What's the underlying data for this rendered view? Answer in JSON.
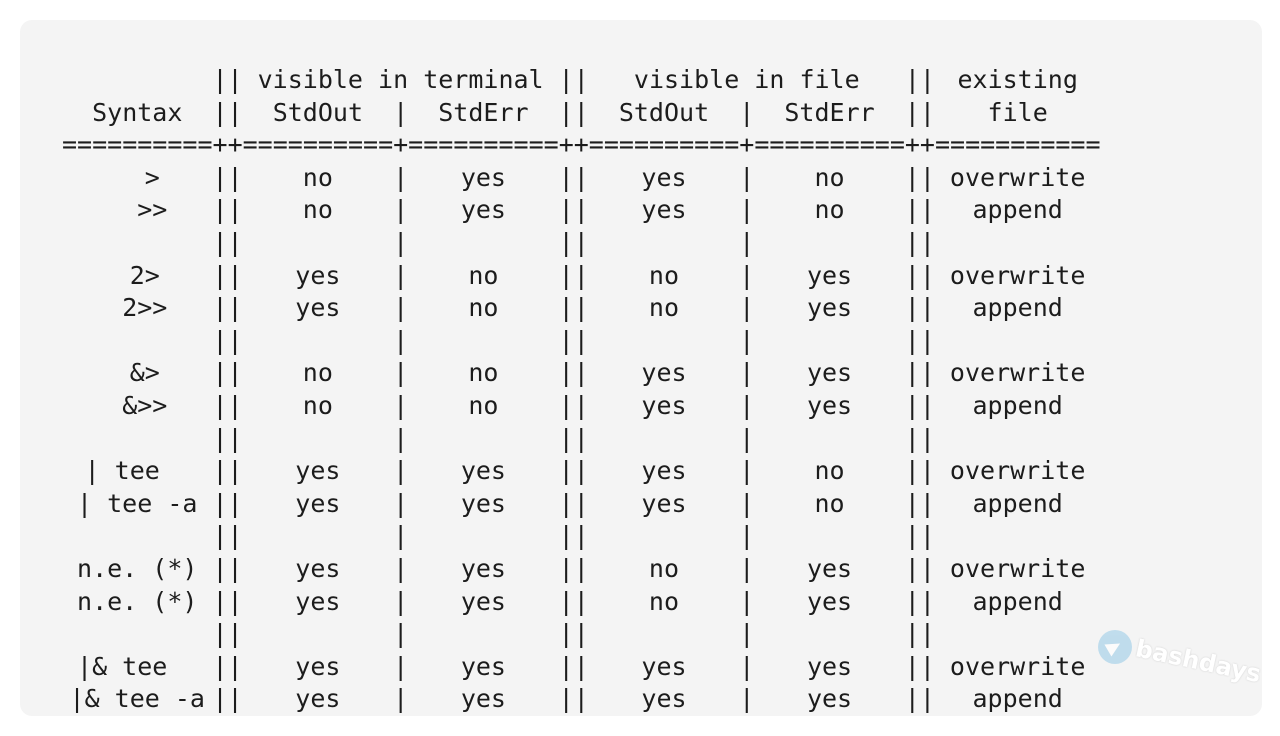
{
  "header": {
    "row1": [
      "",
      "visible in terminal",
      "visible in file",
      "existing"
    ],
    "row2": [
      "Syntax",
      "StdOut",
      "StdErr",
      "StdOut",
      "StdErr",
      "file"
    ]
  },
  "separator_line": "==========++==========+==========++==========+==========++===========",
  "rows": [
    [
      "  >",
      "no",
      "yes",
      "yes",
      "no",
      "overwrite"
    ],
    [
      "  >>",
      "no",
      "yes",
      "yes",
      "no",
      "append"
    ],
    null,
    [
      " 2>",
      "yes",
      "no",
      "no",
      "yes",
      "overwrite"
    ],
    [
      " 2>>",
      "yes",
      "no",
      "no",
      "yes",
      "append"
    ],
    null,
    [
      " &>",
      "no",
      "no",
      "yes",
      "yes",
      "overwrite"
    ],
    [
      " &>>",
      "no",
      "no",
      "yes",
      "yes",
      "append"
    ],
    null,
    [
      "| tee  ",
      "yes",
      "yes",
      "yes",
      "no",
      "overwrite"
    ],
    [
      "| tee -a",
      "yes",
      "yes",
      "yes",
      "no",
      "append"
    ],
    null,
    [
      "n.e. (*)",
      "yes",
      "yes",
      "no",
      "yes",
      "overwrite"
    ],
    [
      "n.e. (*)",
      "yes",
      "yes",
      "no",
      "yes",
      "append"
    ],
    null,
    [
      "|& tee  ",
      "yes",
      "yes",
      "yes",
      "yes",
      "overwrite"
    ],
    [
      "|& tee -a",
      "yes",
      "yes",
      "yes",
      "yes",
      "append"
    ]
  ],
  "watermark": {
    "text": "bashdays",
    "icon": "telegram-icon"
  }
}
